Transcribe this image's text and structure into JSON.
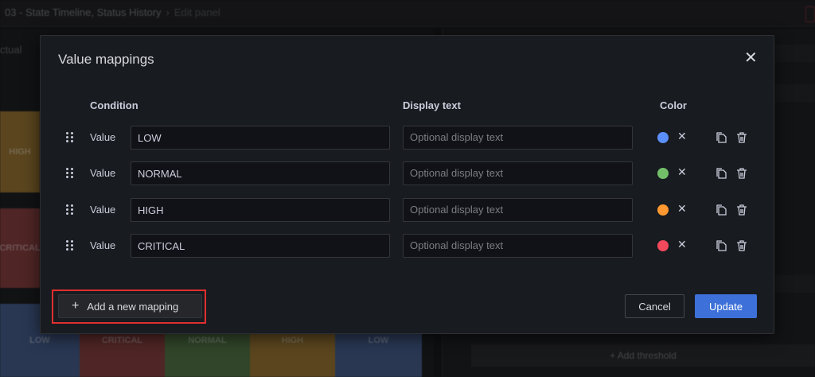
{
  "header": {
    "breadcrumb": "03 - State Timeline, Status History",
    "breadcrumb_sub": "Edit panel"
  },
  "background": {
    "left_label": "ctual",
    "side_tiles": [
      {
        "label": "HIGH",
        "color": "#8a6a2e"
      },
      {
        "label": "CRITICAL",
        "color": "#7a3a3a"
      }
    ],
    "bottom_tiles": [
      {
        "label": "LOW",
        "color": "#3f5580"
      },
      {
        "label": "CRITICAL",
        "color": "#7a3a3a"
      },
      {
        "label": "NORMAL",
        "color": "#4b6a3f"
      },
      {
        "label": "HIGH",
        "color": "#8a6a2e"
      },
      {
        "label": "LOW",
        "color": "#3f5580"
      }
    ],
    "add_threshold": "+ Add threshold"
  },
  "modal": {
    "title": "Value mappings",
    "headers": {
      "condition": "Condition",
      "display_text": "Display text",
      "color": "Color"
    },
    "rows": [
      {
        "type": "Value",
        "value": "LOW",
        "display_placeholder": "Optional display text",
        "color": "#5b8ff9"
      },
      {
        "type": "Value",
        "value": "NORMAL",
        "display_placeholder": "Optional display text",
        "color": "#73bf69"
      },
      {
        "type": "Value",
        "value": "HIGH",
        "display_placeholder": "Optional display text",
        "color": "#ff9830"
      },
      {
        "type": "Value",
        "value": "CRITICAL",
        "display_placeholder": "Optional display text",
        "color": "#f2495c"
      }
    ],
    "add_mapping": "Add a new mapping",
    "cancel": "Cancel",
    "update": "Update"
  }
}
